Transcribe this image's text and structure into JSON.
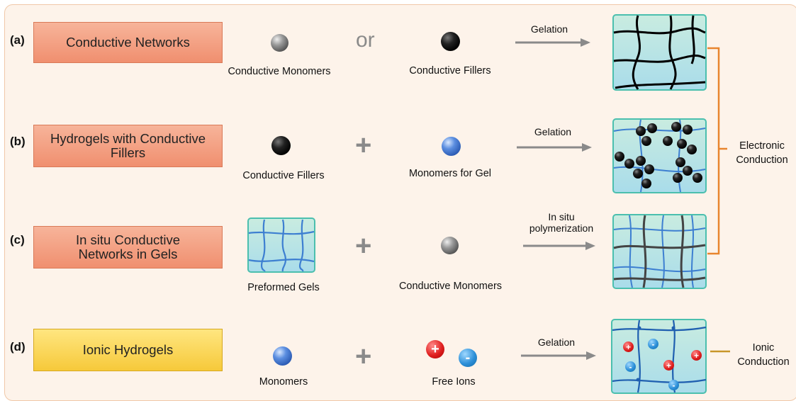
{
  "rows": [
    {
      "label": "(a)",
      "box_text": [
        "Conductive Networks"
      ],
      "left_caption": "Conductive Monomers",
      "operator": "or",
      "right_caption": "Conductive Fillers",
      "process": [
        "Gelation"
      ]
    },
    {
      "label": "(b)",
      "box_text": [
        "Hydrogels with Conductive",
        "Fillers"
      ],
      "left_caption": "Conductive Fillers",
      "operator": "+",
      "right_caption": "Monomers for Gel",
      "process": [
        "Gelation"
      ]
    },
    {
      "label": "(c)",
      "box_text": [
        "In situ Conductive",
        "Networks in Gels"
      ],
      "left_caption": "Preformed Gels",
      "operator": "+",
      "right_caption": "Conductive Monomers",
      "process": [
        "In situ",
        "polymerization"
      ]
    },
    {
      "label": "(d)",
      "box_text": [
        "Ionic Hydrogels"
      ],
      "left_caption": "Monomers",
      "operator": "+",
      "right_caption": "Free Ions",
      "process": [
        "Gelation"
      ]
    }
  ],
  "brackets": {
    "electronic": [
      "Electronic",
      "Conduction"
    ],
    "ionic": [
      "Ionic",
      "Conduction"
    ]
  },
  "ion_signs": {
    "positive": "+",
    "negative": "-"
  },
  "colors": {
    "salmon_box": "#f08f6f",
    "yellow_box": "#f6c93a",
    "gel_fill": "#b8e4ec",
    "gel_border": "#4bbfae",
    "network_blue": "#3d7fd1",
    "bracket_orange": "#e8852e",
    "arrow_grey": "#8a8a8a"
  }
}
